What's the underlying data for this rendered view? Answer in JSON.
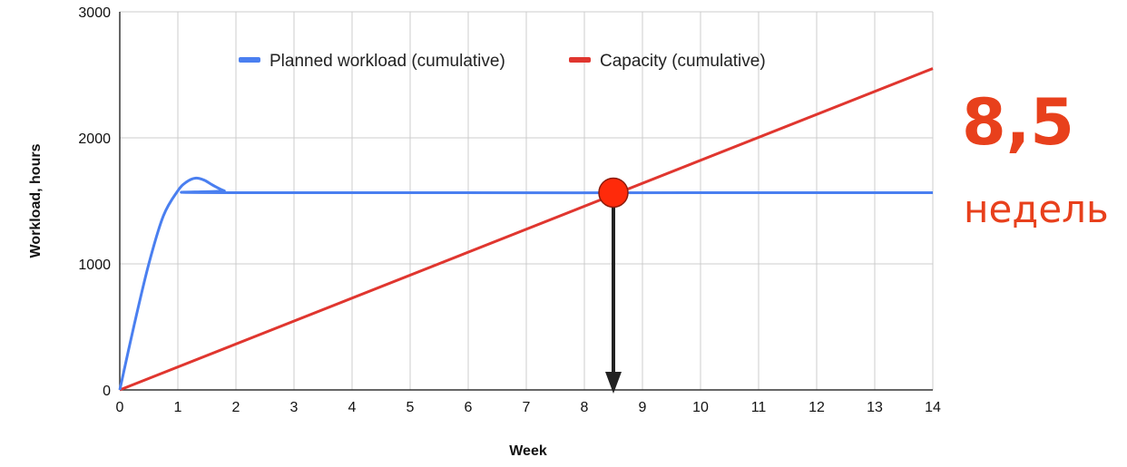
{
  "chart_data": {
    "type": "line",
    "xlabel": "Week",
    "ylabel": "Workload, hours",
    "xlim": [
      0,
      14
    ],
    "ylim": [
      0,
      3000
    ],
    "x_ticks": [
      0,
      1,
      2,
      3,
      4,
      5,
      6,
      7,
      8,
      9,
      10,
      11,
      12,
      13,
      14
    ],
    "y_ticks": [
      0,
      1000,
      2000,
      3000
    ],
    "grid": true,
    "legend_position": "top-center",
    "series": [
      {
        "name": "Planned workload (cumulative)",
        "color": "#4a7ff0",
        "x": [
          0,
          0.25,
          0.5,
          0.75,
          1.0,
          1.15,
          1.3,
          1.45,
          1.6,
          1.8,
          2.0,
          14
        ],
        "y": [
          0,
          520,
          1000,
          1380,
          1580,
          1650,
          1680,
          1665,
          1625,
          1580,
          1565,
          1565
        ]
      },
      {
        "name": "Capacity (cumulative)",
        "color": "#e0362f",
        "x": [
          0,
          14
        ],
        "y": [
          0,
          2550
        ]
      }
    ],
    "annotations": {
      "intersection": {
        "x": 8.5,
        "y": 1565,
        "color": "#ff2a0a"
      },
      "callout_value": "8,5",
      "callout_unit": "недель",
      "callout_color": "#e8401c"
    }
  }
}
